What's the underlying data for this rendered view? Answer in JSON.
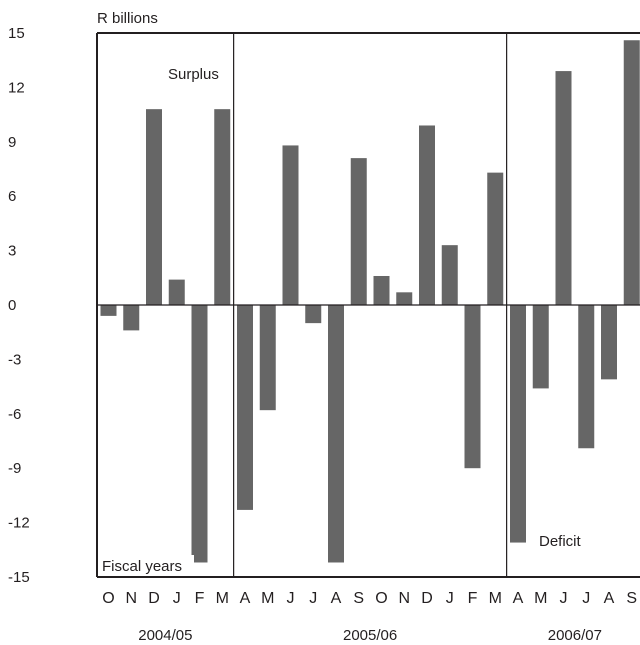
{
  "chart_data": {
    "type": "bar",
    "ylabel": "R billions",
    "ylim": [
      -15,
      15
    ],
    "yticks": [
      "15",
      "12",
      "9",
      "6",
      "3",
      "0",
      "-3",
      "-6",
      "-9",
      "-12",
      "-15"
    ],
    "categories": [
      "O",
      "N",
      "D",
      "J",
      "F",
      "M",
      "A",
      "M",
      "J",
      "J",
      "A",
      "S",
      "O",
      "N",
      "D",
      "J",
      "F",
      "M",
      "A",
      "M",
      "J",
      "J",
      "A",
      "S"
    ],
    "values": [
      -0.6,
      -1.4,
      10.8,
      1.4,
      -14.2,
      10.8,
      -11.3,
      -5.8,
      8.8,
      -1.0,
      -14.2,
      8.1,
      1.6,
      0.7,
      9.9,
      3.3,
      -9.0,
      7.3,
      -13.1,
      -4.6,
      12.9,
      -7.9,
      -4.1,
      14.6
    ],
    "groups": [
      {
        "label": "2004/05",
        "start": 0,
        "count": 6
      },
      {
        "label": "2005/06",
        "start": 6,
        "count": 12
      },
      {
        "label": "2006/07",
        "start": 18,
        "count": 6
      }
    ],
    "annotations": {
      "surplus": "Surplus",
      "deficit": "Deficit",
      "fiscal_years": "Fiscal years"
    },
    "bar_color": "#666666",
    "grid": false
  }
}
